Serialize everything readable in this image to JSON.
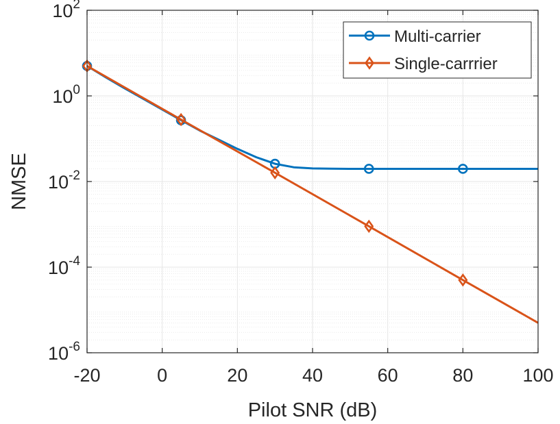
{
  "chart_data": {
    "type": "line",
    "title": "",
    "xlabel": "Pilot SNR (dB)",
    "ylabel": "NMSE",
    "xlim": [
      -20,
      100
    ],
    "ylim": [
      1e-06,
      100
    ],
    "yscale": "log",
    "grid": true,
    "minor_grid": true,
    "legend_position": "top-right",
    "x_ticks": [
      -20,
      0,
      20,
      40,
      60,
      80,
      100
    ],
    "x_tick_labels": [
      "-20",
      "0",
      "20",
      "40",
      "60",
      "80",
      "100"
    ],
    "y_ticks": [
      1e-06,
      0.0001,
      0.01,
      1,
      100
    ],
    "y_tick_labels": [
      {
        "base": "10",
        "exp": "-6"
      },
      {
        "base": "10",
        "exp": "-4"
      },
      {
        "base": "10",
        "exp": "-2"
      },
      {
        "base": "10",
        "exp": "0"
      },
      {
        "base": "10",
        "exp": "2"
      }
    ],
    "series": [
      {
        "name": "Multi-carrier",
        "color": "#0072BD",
        "marker": "circle",
        "x": [
          -20,
          -15,
          -10,
          -5,
          0,
          5,
          10,
          15,
          20,
          25,
          30,
          35,
          40,
          45,
          50,
          55,
          60,
          65,
          70,
          75,
          80,
          85,
          90,
          95,
          100
        ],
        "y": [
          5.0,
          2.7,
          1.5,
          0.85,
          0.48,
          0.27,
          0.155,
          0.095,
          0.058,
          0.037,
          0.026,
          0.0215,
          0.0202,
          0.0199,
          0.0198,
          0.0198,
          0.0198,
          0.0198,
          0.0198,
          0.0198,
          0.0198,
          0.0198,
          0.0198,
          0.0198,
          0.0198
        ],
        "marker_x": [
          -20,
          5,
          30,
          55,
          80
        ],
        "marker_y": [
          5.0,
          0.27,
          0.026,
          0.0198,
          0.0198
        ]
      },
      {
        "name": "Single-carrrier",
        "color": "#D95319",
        "marker": "diamond",
        "x": [
          -20,
          5,
          30,
          55,
          80,
          100
        ],
        "y": [
          5.0,
          0.28,
          0.016,
          0.0009,
          5e-05,
          5e-06
        ],
        "marker_x": [
          -20,
          5,
          30,
          55,
          80
        ],
        "marker_y": [
          5.0,
          0.28,
          0.016,
          0.0009,
          5e-05
        ]
      }
    ]
  }
}
